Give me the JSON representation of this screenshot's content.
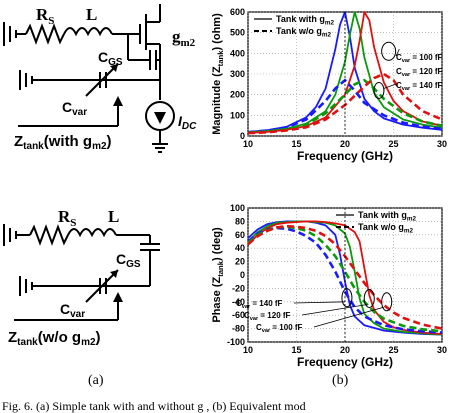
{
  "circuit_a": {
    "rs": "R",
    "rs_sub": "S",
    "l": "L",
    "gm": "g",
    "gm_sub": "m2",
    "cgs": "C",
    "cgs_sub": "GS",
    "cvar": "C",
    "cvar_sub": "var",
    "idc": "I",
    "idc_sub": "DC",
    "ztank": "Z",
    "ztank_sub": "tank",
    "ztank_suffix": "(with g",
    "ztank_suffix_sub": "m2",
    "ztank_close": ")"
  },
  "circuit_b": {
    "rs": "R",
    "rs_sub": "S",
    "l": "L",
    "cgs": "C",
    "cgs_sub": "GS",
    "cvar": "C",
    "cvar_sub": "var",
    "ztank": "Z",
    "ztank_sub": "tank",
    "ztank_suffix": "(w/o g",
    "ztank_suffix_sub": "m2",
    "ztank_close": ")"
  },
  "captions": {
    "a": "(a)",
    "b": "(b)"
  },
  "footer_partial": "Fig. 6. (a) Simple tank with and without g , (b) Equivalent mod",
  "colors": {
    "blue": "#1a1aff",
    "green": "#0a9a0a",
    "red": "#e01010"
  },
  "chart_data": [
    {
      "type": "line",
      "xlabel": "Frequency (GHz)",
      "ylabel_main": "Magnitude (Z",
      "ylabel_sub": "tank",
      "ylabel_end": ") (ohm)",
      "xlim": [
        10,
        30
      ],
      "ylim": [
        0,
        600
      ],
      "xticks": [
        10,
        15,
        20,
        25,
        30
      ],
      "yticks": [
        0,
        100,
        200,
        300,
        400,
        500,
        600
      ],
      "grid": true,
      "legend_position": "top-left",
      "legend": [
        {
          "label_main": "Tank with g",
          "label_sub": "m2",
          "style": "solid"
        },
        {
          "label_main": "Tank w/o g",
          "label_sub": "m2",
          "style": "dashed"
        }
      ],
      "annotations": [
        {
          "main": "C",
          "sub": "var",
          "end": " = 100 fF"
        },
        {
          "main": "C",
          "sub": "var",
          "end": " = 120 fF"
        },
        {
          "main": "C",
          "sub": "var",
          "end": " = 140 fF"
        }
      ],
      "series": [
        {
          "color": "blue",
          "style": "solid",
          "x": [
            10,
            12,
            14,
            16,
            17,
            18,
            19,
            19.5,
            20,
            20.5,
            21,
            22,
            23,
            24,
            26,
            28,
            30
          ],
          "y": [
            20,
            28,
            45,
            90,
            140,
            230,
            420,
            540,
            600,
            480,
            330,
            180,
            120,
            85,
            55,
            40,
            30
          ]
        },
        {
          "color": "green",
          "style": "solid",
          "x": [
            10,
            12,
            14,
            16,
            18,
            19,
            20,
            20.5,
            21,
            21.5,
            22,
            23,
            24,
            26,
            28,
            30
          ],
          "y": [
            18,
            24,
            36,
            60,
            120,
            200,
            360,
            490,
            600,
            520,
            380,
            210,
            140,
            80,
            55,
            40
          ]
        },
        {
          "color": "red",
          "style": "solid",
          "x": [
            10,
            12,
            14,
            16,
            18,
            20,
            21,
            21.5,
            22,
            22.5,
            23,
            24,
            25,
            26,
            28,
            30
          ],
          "y": [
            15,
            20,
            30,
            48,
            90,
            200,
            340,
            460,
            600,
            560,
            430,
            260,
            170,
            120,
            70,
            50
          ]
        },
        {
          "color": "blue",
          "style": "dashed",
          "x": [
            10,
            12,
            14,
            16,
            18,
            19,
            20,
            21,
            22,
            24,
            26,
            28,
            30
          ],
          "y": [
            18,
            26,
            42,
            80,
            170,
            230,
            270,
            220,
            160,
            100,
            65,
            45,
            35
          ]
        },
        {
          "color": "green",
          "style": "dashed",
          "x": [
            10,
            12,
            14,
            16,
            18,
            20,
            21,
            22,
            23,
            24,
            26,
            28,
            30
          ],
          "y": [
            16,
            22,
            34,
            55,
            110,
            200,
            250,
            270,
            230,
            180,
            110,
            70,
            50
          ]
        },
        {
          "color": "red",
          "style": "dashed",
          "x": [
            10,
            12,
            14,
            16,
            18,
            20,
            22,
            23,
            24,
            25,
            26,
            28,
            30
          ],
          "y": [
            14,
            18,
            27,
            42,
            80,
            150,
            240,
            280,
            300,
            270,
            200,
            120,
            80
          ]
        }
      ]
    },
    {
      "type": "line",
      "xlabel": "Frequency (GHz)",
      "ylabel_main": "Phase (Z",
      "ylabel_sub": "tank",
      "ylabel_end": ") (deg)",
      "xlim": [
        10,
        30
      ],
      "ylim": [
        -100,
        100
      ],
      "xticks": [
        10,
        15,
        20,
        25,
        30
      ],
      "yticks": [
        -100,
        -80,
        -60,
        -40,
        -20,
        0,
        20,
        40,
        60,
        80,
        100
      ],
      "grid": true,
      "legend_position": "top-right",
      "legend": [
        {
          "label_main": "Tank with g",
          "label_sub": "m2",
          "style": "solid"
        },
        {
          "label_main": "Tank w/o g",
          "label_sub": "m2",
          "style": "dashed"
        }
      ],
      "annotations": [
        {
          "main": "C",
          "sub": "var",
          "end": " = 140 fF"
        },
        {
          "main": "C",
          "sub": "var",
          "end": " = 120 fF"
        },
        {
          "main": "C",
          "sub": "var",
          "end": " = 100 fF"
        }
      ],
      "series": [
        {
          "color": "blue",
          "style": "solid",
          "x": [
            10,
            11,
            12,
            13,
            14,
            15,
            16,
            17,
            18,
            19,
            19.5,
            20,
            20.5,
            21,
            22,
            24,
            26,
            28,
            30
          ],
          "y": [
            55,
            68,
            76,
            79,
            80,
            80,
            80,
            78,
            74,
            60,
            30,
            -10,
            -45,
            -62,
            -75,
            -83,
            -86,
            -88,
            -89
          ]
        },
        {
          "color": "green",
          "style": "solid",
          "x": [
            10,
            11,
            12,
            13,
            14,
            15,
            16,
            17,
            18,
            19,
            20,
            20.5,
            21,
            21.5,
            22,
            23,
            24,
            26,
            28,
            30
          ],
          "y": [
            50,
            64,
            73,
            78,
            79,
            80,
            80,
            79,
            78,
            74,
            62,
            42,
            5,
            -35,
            -58,
            -72,
            -80,
            -85,
            -87,
            -89
          ]
        },
        {
          "color": "red",
          "style": "solid",
          "x": [
            10,
            11,
            12,
            13,
            14,
            15,
            16,
            17,
            18,
            19,
            20,
            21,
            21.5,
            22,
            22.5,
            23,
            24,
            25,
            26,
            28,
            30
          ],
          "y": [
            45,
            60,
            70,
            76,
            78,
            79,
            80,
            80,
            79,
            77,
            74,
            64,
            50,
            10,
            -30,
            -52,
            -70,
            -78,
            -82,
            -86,
            -88
          ]
        },
        {
          "color": "blue",
          "style": "dashed",
          "x": [
            10,
            11,
            12,
            13,
            14,
            15,
            16,
            17,
            18,
            19,
            20,
            21,
            22,
            24,
            26,
            28,
            30
          ],
          "y": [
            50,
            62,
            68,
            70,
            69,
            65,
            58,
            48,
            30,
            5,
            -25,
            -48,
            -62,
            -75,
            -81,
            -84,
            -86
          ]
        },
        {
          "color": "green",
          "style": "dashed",
          "x": [
            10,
            11,
            12,
            13,
            14,
            15,
            16,
            17,
            18,
            19,
            20,
            21,
            22,
            23,
            24,
            26,
            28,
            30
          ],
          "y": [
            48,
            60,
            67,
            71,
            72,
            70,
            66,
            58,
            45,
            28,
            5,
            -20,
            -40,
            -55,
            -65,
            -76,
            -81,
            -84
          ]
        },
        {
          "color": "red",
          "style": "dashed",
          "x": [
            10,
            11,
            12,
            13,
            14,
            15,
            16,
            17,
            18,
            19,
            20,
            21,
            22,
            23,
            24,
            25,
            26,
            28,
            30
          ],
          "y": [
            46,
            58,
            66,
            71,
            73,
            72,
            70,
            66,
            58,
            46,
            28,
            8,
            -12,
            -30,
            -45,
            -56,
            -64,
            -74,
            -80
          ]
        }
      ]
    }
  ]
}
